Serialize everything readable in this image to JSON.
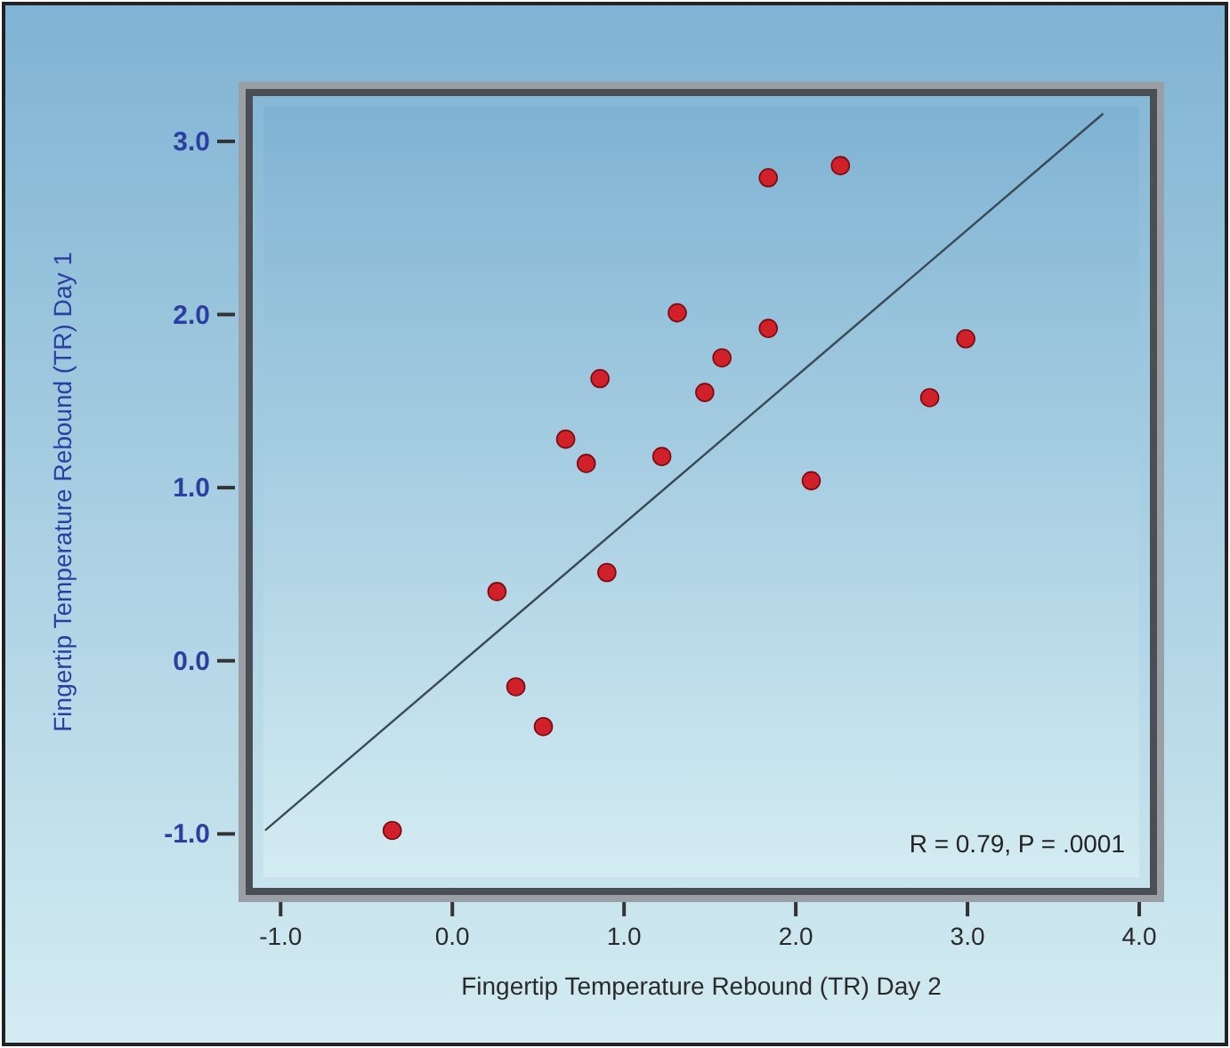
{
  "chart_data": {
    "type": "scatter",
    "xlabel": "Fingertip Temperature Rebound (TR) Day 2",
    "ylabel": "Fingertip Temperature Rebound (TR) Day 1",
    "xlim": [
      -1.1,
      4.0
    ],
    "ylim": [
      -1.25,
      3.2
    ],
    "xticks": [
      {
        "value": -1,
        "label": "-1.0"
      },
      {
        "value": 0,
        "label": "0.0"
      },
      {
        "value": 1,
        "label": "1.0"
      },
      {
        "value": 2,
        "label": "2.0"
      },
      {
        "value": 3,
        "label": "3.0"
      },
      {
        "value": 4,
        "label": "4.0"
      }
    ],
    "yticks": [
      {
        "value": -1,
        "label": "-1.0"
      },
      {
        "value": 0,
        "label": "0.0"
      },
      {
        "value": 1,
        "label": "1.0"
      },
      {
        "value": 2,
        "label": "2.0"
      },
      {
        "value": 3,
        "label": "3.0"
      }
    ],
    "grid": false,
    "annotations": [
      "R = 0.79, P = .0001"
    ],
    "series": [
      {
        "marker": "circle",
        "color": "#d0202a",
        "x": [
          -0.35,
          0.26,
          0.37,
          0.53,
          0.66,
          0.78,
          0.86,
          0.9,
          1.22,
          1.31,
          1.47,
          1.57,
          1.84,
          1.84,
          2.09,
          2.26,
          2.78,
          2.99
        ],
        "values": [
          -0.98,
          0.4,
          -0.15,
          -0.38,
          1.28,
          1.14,
          1.63,
          0.51,
          1.18,
          2.01,
          1.55,
          1.75,
          2.79,
          1.92,
          1.04,
          2.86,
          1.52,
          1.86
        ]
      },
      {
        "type": "line",
        "color": "#3a4a55",
        "x": [
          -1.09,
          3.79
        ],
        "values": [
          -0.98,
          3.16
        ]
      }
    ]
  }
}
